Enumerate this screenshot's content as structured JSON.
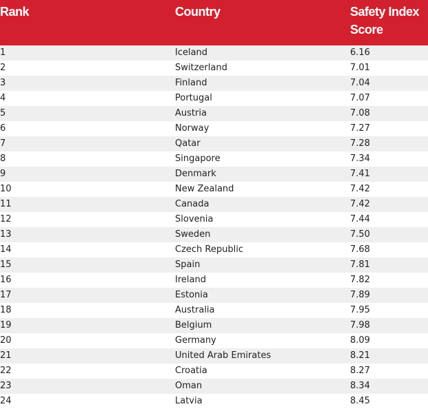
{
  "table": {
    "header": [
      "Rank",
      "Country",
      "Safety Index Score"
    ],
    "rows": [
      [
        "1",
        "Iceland",
        "6.16"
      ],
      [
        "2",
        "Switzerland",
        "7.01"
      ],
      [
        "3",
        "Finland",
        "7.04"
      ],
      [
        "4",
        "Portugal",
        "7.07"
      ],
      [
        "5",
        "Austria",
        "7.08"
      ],
      [
        "6",
        "Norway",
        "7.27"
      ],
      [
        "7",
        "Qatar",
        "7.28"
      ],
      [
        "8",
        "Singapore",
        "7.34"
      ],
      [
        "9",
        "Denmark",
        "7.41"
      ],
      [
        "10",
        "New Zealand",
        "7.42"
      ],
      [
        "11",
        "Canada",
        "7.42"
      ],
      [
        "12",
        "Slovenia",
        "7.44"
      ],
      [
        "13",
        "Sweden",
        "7.50"
      ],
      [
        "14",
        "Czech Republic",
        "7.68"
      ],
      [
        "15",
        "Spain",
        "7.81"
      ],
      [
        "16",
        "Ireland",
        "7.82"
      ],
      [
        "17",
        "Estonia",
        "7.89"
      ],
      [
        "18",
        "Australia",
        "7.95"
      ],
      [
        "19",
        "Belgium",
        "7.98"
      ],
      [
        "20",
        "Germany",
        "8.09"
      ],
      [
        "21",
        "United Arab Emirates",
        "8.21"
      ],
      [
        "22",
        "Croatia",
        "8.27"
      ],
      [
        "23",
        "Oman",
        "8.34"
      ],
      [
        "24",
        "Latvia",
        "8.45"
      ]
    ]
  }
}
